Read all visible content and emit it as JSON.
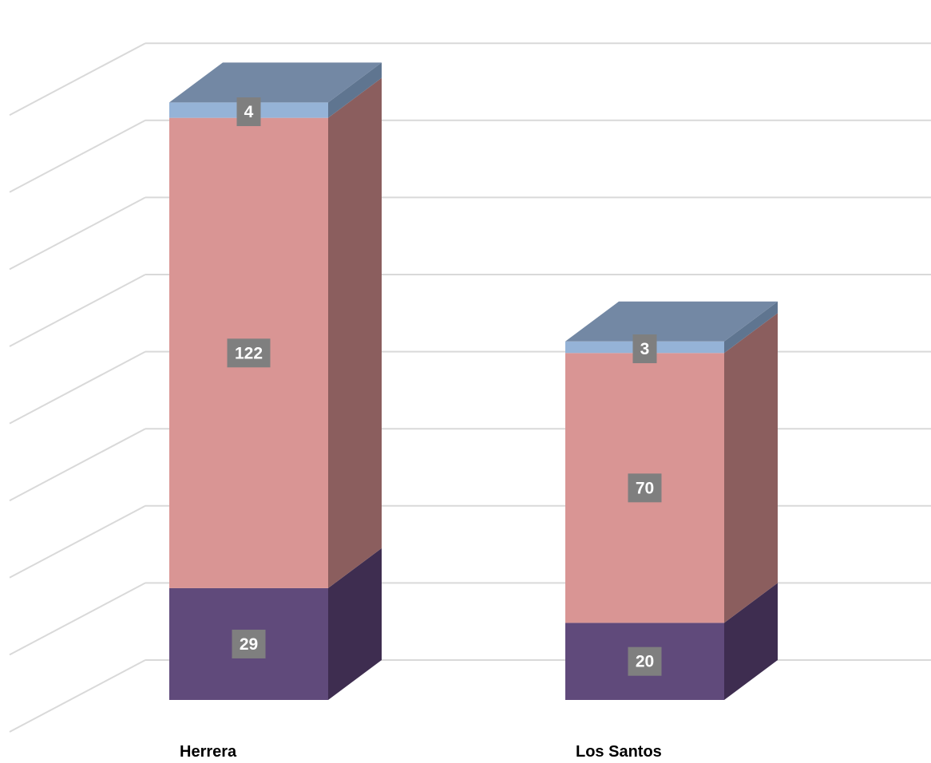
{
  "chart_data": {
    "type": "bar",
    "stacked": true,
    "three_d": true,
    "categories": [
      "Herrera",
      "Los Santos"
    ],
    "series": [
      {
        "values": [
          29,
          20
        ],
        "colors": {
          "front": "#604a7b",
          "side": "#3e2d50",
          "top": "#7a6697"
        }
      },
      {
        "values": [
          122,
          70
        ],
        "colors": {
          "front": "#d99594",
          "side": "#8b5e5e",
          "top": "#e8b0af"
        }
      },
      {
        "values": [
          4,
          3
        ],
        "colors": {
          "front": "#95b3d7",
          "side": "#5f7590",
          "top": "#7388a4"
        }
      }
    ],
    "data_labels": true,
    "ylim": [
      0,
      160
    ],
    "grid": true,
    "legend": "none"
  }
}
